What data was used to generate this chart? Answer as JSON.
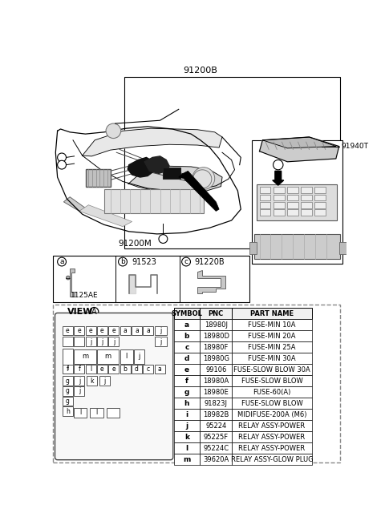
{
  "bg_color": "#ffffff",
  "main_label": "91200B",
  "sub_label_91200M": "91200M",
  "sub_label_91523": "91523",
  "sub_label_91220B": "91220B",
  "sub_label_1125AE": "1125AE",
  "sub_label_91940T": "91940T",
  "view_label": "VIEW",
  "table_headers": [
    "SYMBOL",
    "PNC",
    "PART NAME"
  ],
  "table_rows": [
    [
      "a",
      "18980J",
      "FUSE-MIN 10A"
    ],
    [
      "b",
      "18980D",
      "FUSE-MIN 20A"
    ],
    [
      "c",
      "18980F",
      "FUSE-MIN 25A"
    ],
    [
      "d",
      "18980G",
      "FUSE-MIN 30A"
    ],
    [
      "e",
      "99106",
      "FUSE-SLOW BLOW 30A"
    ],
    [
      "f",
      "18980A",
      "FUSE-SLOW BLOW"
    ],
    [
      "g",
      "18980E",
      "FUSE-60(A)"
    ],
    [
      "h",
      "91823J",
      "FUSE-SLOW BLOW"
    ],
    [
      "i",
      "18982B",
      "MIDIFUSE-200A (M6)"
    ],
    [
      "j",
      "95224",
      "RELAY ASSY-POWER"
    ],
    [
      "k",
      "95225F",
      "RELAY ASSY-POWER"
    ],
    [
      "l",
      "95224C",
      "RELAY ASSY-POWER"
    ],
    [
      "m",
      "39620A",
      "RELAY ASSY-GLOW PLUG"
    ]
  ],
  "dashed_border_color": "#888888",
  "text_color": "#000000"
}
